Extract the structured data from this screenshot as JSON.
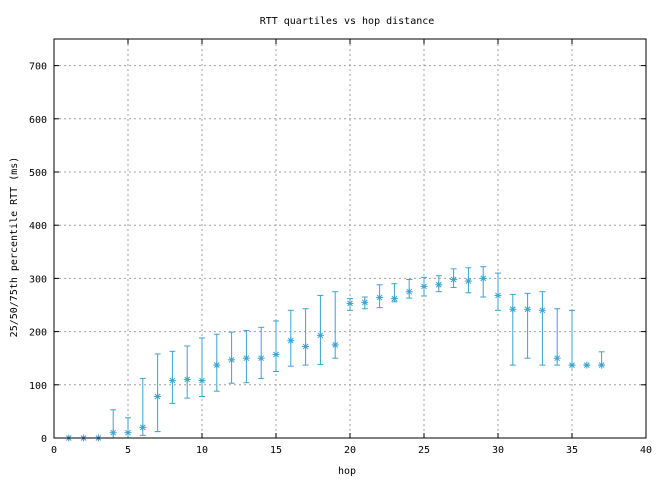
{
  "chart_data": {
    "type": "scatter",
    "title": "RTT quartiles vs hop distance",
    "xlabel": "hop",
    "ylabel": "25/50/75th percentile RTT (ms)",
    "xlim": [
      0,
      40
    ],
    "ylim": [
      0,
      750
    ],
    "xticks": [
      0,
      5,
      10,
      15,
      20,
      25,
      30,
      35,
      40
    ],
    "yticks": [
      0,
      100,
      200,
      300,
      400,
      500,
      600,
      700
    ],
    "grid": true,
    "marker": "asterisk",
    "color": "#3ba3d0",
    "series": [
      {
        "points": [
          {
            "x": 1,
            "median": 0,
            "low": 0,
            "high": 0
          },
          {
            "x": 2,
            "median": 0,
            "low": 0,
            "high": 0
          },
          {
            "x": 3,
            "median": 0,
            "low": 0,
            "high": 0
          },
          {
            "x": 4,
            "median": 10,
            "low": 0,
            "high": 53
          },
          {
            "x": 5,
            "median": 10,
            "low": 0,
            "high": 38
          },
          {
            "x": 6,
            "median": 20,
            "low": 5,
            "high": 112
          },
          {
            "x": 7,
            "median": 78,
            "low": 12,
            "high": 158
          },
          {
            "x": 8,
            "median": 108,
            "low": 65,
            "high": 163
          },
          {
            "x": 9,
            "median": 110,
            "low": 75,
            "high": 173
          },
          {
            "x": 10,
            "median": 108,
            "low": 78,
            "high": 188
          },
          {
            "x": 11,
            "median": 137,
            "low": 88,
            "high": 195
          },
          {
            "x": 12,
            "median": 147,
            "low": 103,
            "high": 199
          },
          {
            "x": 13,
            "median": 150,
            "low": 104,
            "high": 202
          },
          {
            "x": 14,
            "median": 150,
            "low": 112,
            "high": 208
          },
          {
            "x": 15,
            "median": 157,
            "low": 125,
            "high": 220
          },
          {
            "x": 16,
            "median": 183,
            "low": 135,
            "high": 240
          },
          {
            "x": 17,
            "median": 172,
            "low": 137,
            "high": 243
          },
          {
            "x": 18,
            "median": 193,
            "low": 138,
            "high": 268
          },
          {
            "x": 19,
            "median": 175,
            "low": 150,
            "high": 275
          },
          {
            "x": 20,
            "median": 253,
            "low": 240,
            "high": 262
          },
          {
            "x": 21,
            "median": 255,
            "low": 243,
            "high": 265
          },
          {
            "x": 22,
            "median": 264,
            "low": 245,
            "high": 288
          },
          {
            "x": 23,
            "median": 262,
            "low": 256,
            "high": 290
          },
          {
            "x": 24,
            "median": 275,
            "low": 263,
            "high": 298
          },
          {
            "x": 25,
            "median": 285,
            "low": 267,
            "high": 302
          },
          {
            "x": 26,
            "median": 288,
            "low": 275,
            "high": 305
          },
          {
            "x": 27,
            "median": 298,
            "low": 283,
            "high": 318
          },
          {
            "x": 28,
            "median": 295,
            "low": 273,
            "high": 320
          },
          {
            "x": 29,
            "median": 300,
            "low": 265,
            "high": 322
          },
          {
            "x": 30,
            "median": 268,
            "low": 240,
            "high": 310
          },
          {
            "x": 31,
            "median": 242,
            "low": 137,
            "high": 270
          },
          {
            "x": 32,
            "median": 242,
            "low": 150,
            "high": 272
          },
          {
            "x": 33,
            "median": 240,
            "low": 137,
            "high": 275
          },
          {
            "x": 34,
            "median": 150,
            "low": 137,
            "high": 243
          },
          {
            "x": 35,
            "median": 137,
            "low": 137,
            "high": 240
          },
          {
            "x": 36,
            "median": 137,
            "low": 137,
            "high": 137
          },
          {
            "x": 37,
            "median": 137,
            "low": 137,
            "high": 162
          }
        ]
      }
    ]
  }
}
